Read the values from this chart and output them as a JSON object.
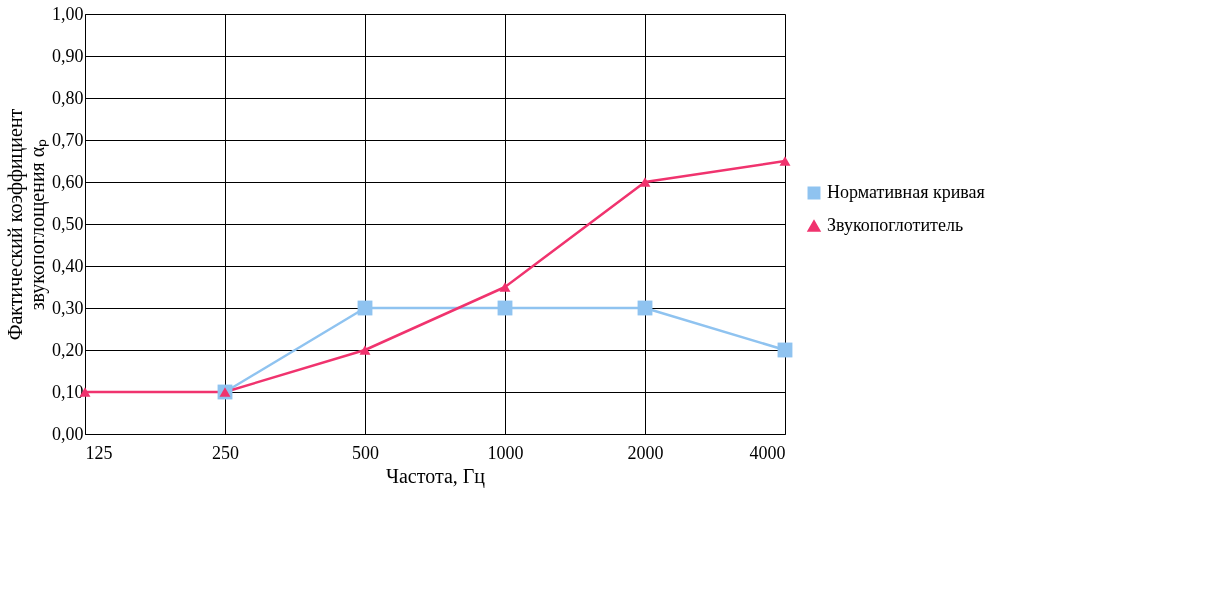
{
  "chart_data": {
    "type": "line",
    "xlabel": "Частота, Гц",
    "ylabel": "Фактический коэффициент\nзвукопоглощения αₚ",
    "categories": [
      "125",
      "250",
      "500",
      "1000",
      "2000",
      "4000"
    ],
    "series": [
      {
        "name": "Нормативная кривая",
        "color": "#8fc3f0",
        "marker": "square",
        "values": [
          null,
          0.1,
          0.3,
          0.3,
          0.3,
          0.2
        ]
      },
      {
        "name": "Звукопоглотитель",
        "color": "#f0336e",
        "marker": "triangle",
        "values": [
          0.1,
          0.1,
          0.2,
          0.35,
          0.6,
          0.65
        ]
      }
    ],
    "ylim": [
      0,
      1
    ],
    "yticks": [
      {
        "value": 0,
        "label": "0,00"
      },
      {
        "value": 0.1,
        "label": "0,10"
      },
      {
        "value": 0.2,
        "label": "0,20"
      },
      {
        "value": 0.3,
        "label": "0,30"
      },
      {
        "value": 0.4,
        "label": "0,40"
      },
      {
        "value": 0.5,
        "label": "0,50"
      },
      {
        "value": 0.6,
        "label": "0,60"
      },
      {
        "value": 0.7,
        "label": "0,70"
      },
      {
        "value": 0.8,
        "label": "0,80"
      },
      {
        "value": 0.9,
        "label": "0,90"
      },
      {
        "value": 1,
        "label": "1,00"
      }
    ],
    "grid": true,
    "legend": "right",
    "line_style": "solid"
  }
}
